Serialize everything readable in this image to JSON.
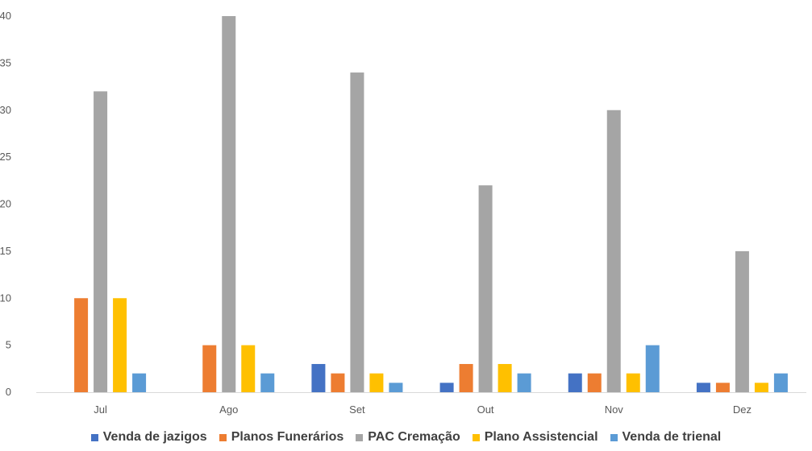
{
  "chart_data": {
    "type": "bar",
    "title": "",
    "xlabel": "",
    "ylabel": "",
    "categories": [
      "Jul",
      "Ago",
      "Set",
      "Out",
      "Nov",
      "Dez"
    ],
    "ylim": [
      0,
      40
    ],
    "yticks": [
      0,
      5,
      10,
      15,
      20,
      25,
      30,
      35,
      40
    ],
    "grid": false,
    "legend_position": "bottom",
    "series": [
      {
        "name": "Venda de jazigos",
        "color": "#4472C4",
        "values": [
          0,
          0,
          3,
          1,
          2,
          1
        ]
      },
      {
        "name": "Planos Funerários",
        "color": "#ED7D31",
        "values": [
          10,
          5,
          2,
          3,
          2,
          1
        ]
      },
      {
        "name": "PAC Cremação",
        "color": "#A5A5A5",
        "values": [
          32,
          40,
          34,
          22,
          30,
          15
        ]
      },
      {
        "name": "Plano Assistencial",
        "color": "#FFC000",
        "values": [
          10,
          5,
          2,
          3,
          2,
          1
        ]
      },
      {
        "name": "Venda de trienal",
        "color": "#5B9BD5",
        "values": [
          2,
          2,
          1,
          2,
          5,
          2
        ]
      }
    ]
  }
}
